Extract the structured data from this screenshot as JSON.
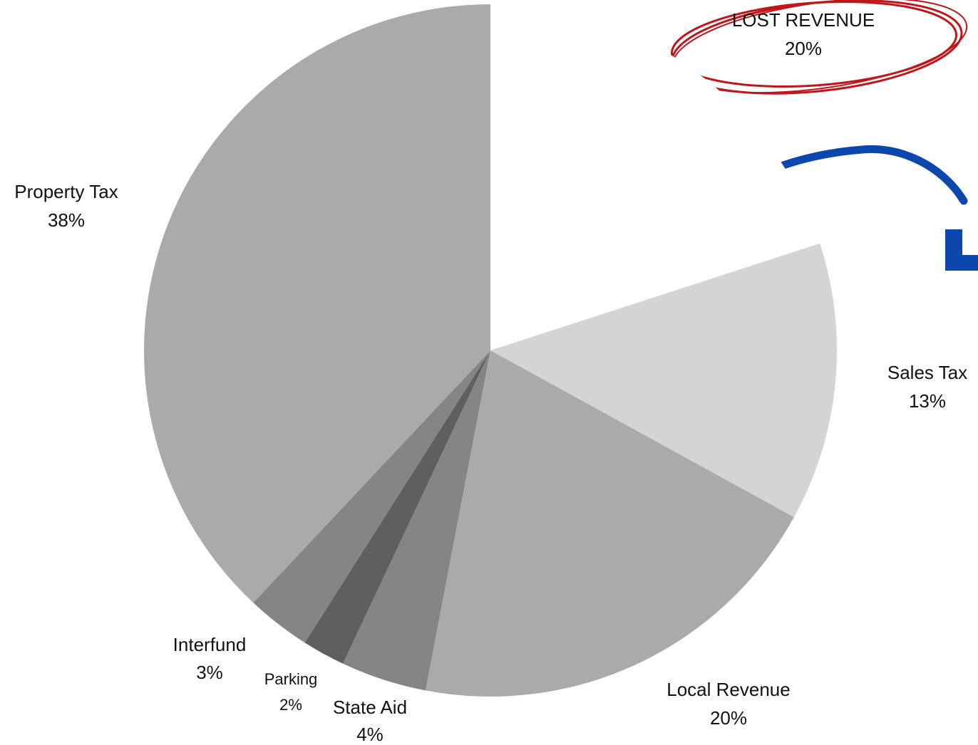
{
  "chart_data": {
    "type": "pie",
    "categories": [
      "LOST REVENUE",
      "Sales Tax",
      "Local Revenue",
      "State Aid",
      "Parking",
      "Interfund",
      "Property Tax"
    ],
    "values": [
      20,
      13,
      20,
      4,
      2,
      3,
      38
    ],
    "value_labels": [
      "20%",
      "13%",
      "20%",
      "4%",
      "2%",
      "3%",
      "38%"
    ],
    "colors": [
      "#ffffff",
      "#d4d4d4",
      "#aaaaaa",
      "#858585",
      "#5f5f5f",
      "#858585",
      "#aaaaaa"
    ]
  }
}
